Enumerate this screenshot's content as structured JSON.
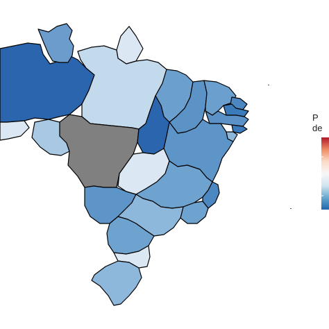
{
  "legend": {
    "title_line1": "P",
    "title_line2": "de",
    "gradient_colors": [
      "#b2182b",
      "#ef8a62",
      "#fddbc7",
      "#f7f7f7",
      "#d1e5f0",
      "#67a9cf",
      "#2166ac"
    ]
  },
  "colors": {
    "no_data": "#808080",
    "border": "#000000",
    "background": "#ffffff"
  },
  "map": {
    "regions": [
      {
        "id": "AM",
        "fill": "#2b65ae"
      },
      {
        "id": "RR",
        "fill": "#6b9ccc"
      },
      {
        "id": "AP",
        "fill": "#dbe8f3"
      },
      {
        "id": "PA",
        "fill": "#c3d9ec"
      },
      {
        "id": "AC",
        "fill": "#dbe8f3"
      },
      {
        "id": "RO",
        "fill": "#a8c8e3"
      },
      {
        "id": "MT",
        "fill": "#808080"
      },
      {
        "id": "MA",
        "fill": "#6b9fcd"
      },
      {
        "id": "PI",
        "fill": "#5b93c7"
      },
      {
        "id": "CE",
        "fill": "#6b9fcd"
      },
      {
        "id": "RN",
        "fill": "#4b87c1"
      },
      {
        "id": "PB",
        "fill": "#3c7bbb"
      },
      {
        "id": "PE",
        "fill": "#5a92c7"
      },
      {
        "id": "AL",
        "fill": "#3c7bbb"
      },
      {
        "id": "SE",
        "fill": "#8db7db"
      },
      {
        "id": "TO",
        "fill": "#2b65ae"
      },
      {
        "id": "BA",
        "fill": "#5e95c8"
      },
      {
        "id": "GO",
        "fill": "#dbe8f3"
      },
      {
        "id": "MG",
        "fill": "#6ea2cf"
      },
      {
        "id": "ES",
        "fill": "#4b87c1"
      },
      {
        "id": "RJ",
        "fill": "#6ea2cf"
      },
      {
        "id": "MS",
        "fill": "#5e95c8"
      },
      {
        "id": "SP",
        "fill": "#8db7db"
      },
      {
        "id": "PR",
        "fill": "#6ea2cf"
      },
      {
        "id": "SC",
        "fill": "#dbe8f3"
      },
      {
        "id": "RS",
        "fill": "#8db7db"
      }
    ]
  }
}
